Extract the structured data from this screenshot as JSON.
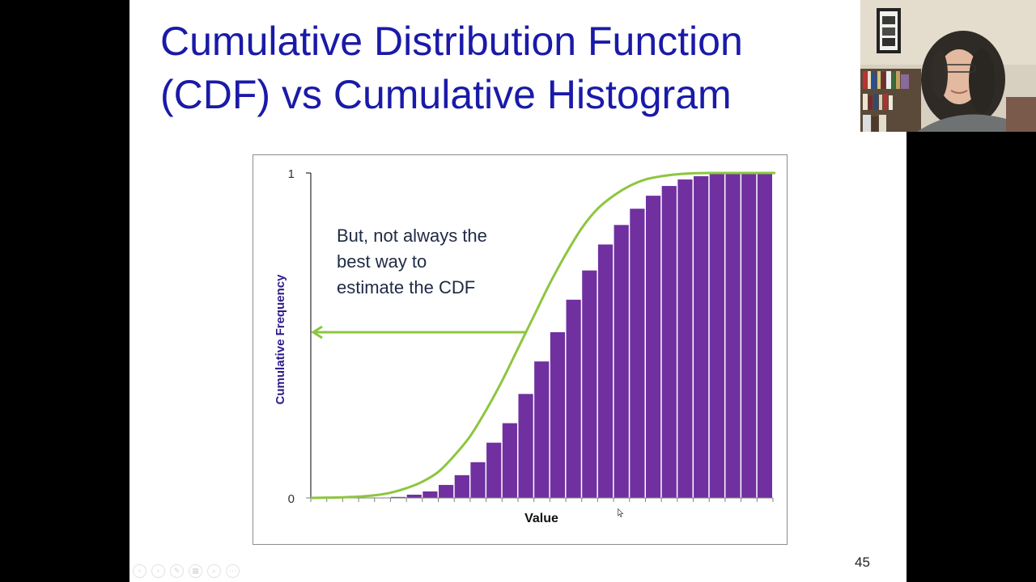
{
  "slide": {
    "title_line1": "Cumulative Distribution Function",
    "title_line2": "(CDF) vs Cumulative Histogram",
    "annotation_line1": "But, not always the",
    "annotation_line2": "best way to",
    "annotation_line3": "estimate the CDF",
    "slide_number": "45"
  },
  "nav_controls": [
    {
      "name": "prev-slide-button",
      "icon": "chevron-left-icon",
      "glyph": "‹"
    },
    {
      "name": "next-slide-button",
      "icon": "chevron-right-icon",
      "glyph": "›"
    },
    {
      "name": "pen-tool-button",
      "icon": "pen-icon",
      "glyph": "✎"
    },
    {
      "name": "slides-view-button",
      "icon": "slides-icon",
      "glyph": "▦"
    },
    {
      "name": "zoom-button",
      "icon": "magnifier-icon",
      "glyph": "⌕"
    },
    {
      "name": "more-options-button",
      "icon": "ellipsis-icon",
      "glyph": "⋯"
    }
  ],
  "colors": {
    "title": "#1a1aa8",
    "bars": "#7030a0",
    "curve": "#8dc63f",
    "axis_label": "#2e1b8a"
  },
  "chart_data": {
    "type": "bar",
    "xlabel": "Value",
    "ylabel": "Cumulative Frequency",
    "ylim": [
      0,
      1
    ],
    "y_ticks": [
      "0",
      "1"
    ],
    "bin_count": 29,
    "series": [
      {
        "kind": "cumulative-histogram",
        "values": [
          0,
          0,
          0,
          0,
          0,
          0.003,
          0.01,
          0.02,
          0.04,
          0.07,
          0.11,
          0.17,
          0.23,
          0.32,
          0.42,
          0.51,
          0.61,
          0.7,
          0.78,
          0.84,
          0.89,
          0.93,
          0.96,
          0.98,
          0.99,
          1,
          1,
          1,
          1
        ]
      },
      {
        "kind": "cdf-curve",
        "values": [
          0,
          0.001,
          0.002,
          0.004,
          0.008,
          0.016,
          0.03,
          0.05,
          0.08,
          0.13,
          0.19,
          0.27,
          0.36,
          0.46,
          0.56,
          0.66,
          0.75,
          0.83,
          0.89,
          0.93,
          0.96,
          0.98,
          0.99,
          0.996,
          0.999,
          1,
          1,
          1,
          1,
          1
        ]
      }
    ],
    "arrow_level": 0.51
  }
}
